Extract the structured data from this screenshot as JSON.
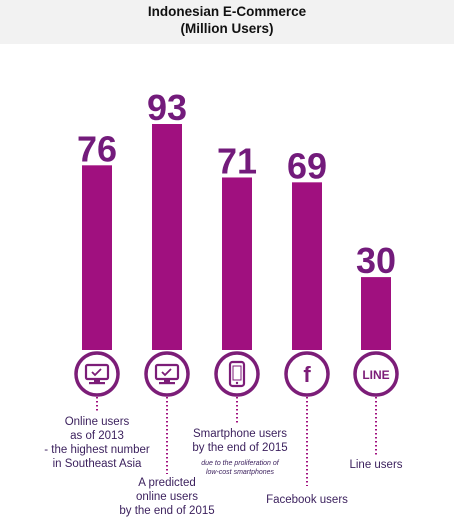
{
  "title_line1": "Indonesian E-Commerce",
  "title_line2": "(Million Users)",
  "colors": {
    "bar": "#a0107f",
    "value_text": "#731b7b",
    "icon_ring": "#7c1d78",
    "dotted_line": "#a0107f",
    "caption_text": "#3a1f5c",
    "header_bg": "#f2f2f2"
  },
  "chart_data": {
    "type": "bar",
    "categories": [
      "Online users as of 2013 - the highest number in Southeast Asia",
      "A predicted online users by the end of 2015",
      "Smartphone users by the end of 2015",
      "Facebook users",
      "Line users"
    ],
    "values": [
      76,
      93,
      71,
      69,
      30
    ],
    "value_labels": [
      "76",
      "93",
      "71",
      "69",
      "30"
    ],
    "icons": [
      "monitor-icon",
      "monitor-icon",
      "smartphone-icon",
      "facebook-icon",
      "line-icon"
    ],
    "icon_text": {
      "line": "LINE",
      "facebook": "f"
    },
    "title": "Indonesian E-Commerce (Million Users)"
  },
  "captions": {
    "bar1": [
      "Online users",
      "as of 2013",
      "- the highest number",
      "in Southeast Asia"
    ],
    "bar2": [
      "A predicted",
      "online users",
      "by the end of 2015"
    ],
    "bar3": [
      "Smartphone users",
      "by the end of 2015"
    ],
    "bar3_note": [
      "due to the proliferation of",
      "low-cost smartphones"
    ],
    "bar4": [
      "Facebook users"
    ],
    "bar5": [
      "Line users"
    ]
  }
}
